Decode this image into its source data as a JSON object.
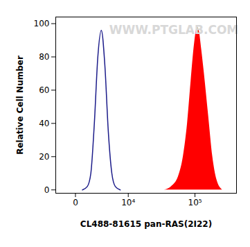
{
  "chart_data": {
    "type": "histogram",
    "xlabel": "CL488-81615 pan-RAS(2I22)",
    "ylabel": "Relative Cell Number",
    "annotations": [
      "WWW.PTGLAB.COM"
    ],
    "log": "x",
    "grid": false,
    "xlim": [
      -2000,
      380000
    ],
    "xticks": [
      0,
      {
        "value": 10000,
        "label": "10⁴"
      },
      {
        "value": 100000,
        "label": "10⁵"
      }
    ],
    "ylim": [
      -2,
      104
    ],
    "yticks": [
      0,
      20,
      40,
      60,
      80,
      100
    ],
    "series": [
      {
        "type": "line",
        "color": "#1c1c8a",
        "x": [
          570,
          1050,
          1450,
          1890,
          2380,
          2930,
          3550,
          4230,
          5000,
          5860,
          7240
        ],
        "values": [
          0,
          2,
          10,
          40,
          80,
          96,
          75,
          35,
          10,
          2,
          0
        ]
      },
      {
        "type": "area",
        "color": "#ff0000",
        "x": [
          36360,
          45980,
          58030,
          68150,
          78200,
          87630,
          98210,
          107640,
          115160,
          123280,
          135010,
          154560,
          176870,
          202400,
          242420
        ],
        "values": [
          0,
          2,
          8,
          20,
          40,
          65,
          88,
          98,
          95,
          85,
          70,
          45,
          20,
          6,
          0
        ]
      }
    ]
  }
}
